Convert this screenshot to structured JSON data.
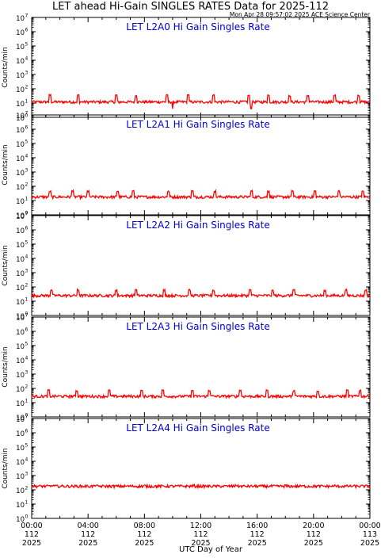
{
  "title": "LET ahead Hi-Gain SINGLES RATES Data for 2025-112",
  "timestamp": "Mon Apr 28 09:57:02 2025 ACE Science Center",
  "xlabel": "UTC Day of Year",
  "colors": {
    "trace": "#ff0000",
    "panel_title": "#0000cc",
    "axis": "#000000",
    "background": "#ffffff"
  },
  "chart_data": [
    {
      "type": "line",
      "title": "LET L2A0 Hi Gain Singles Rate",
      "ylabel": "Counts/min",
      "yscale": "log",
      "ylim": [
        1,
        10000000
      ],
      "xlim": [
        0,
        24
      ],
      "baseline": 12,
      "spike_times": [
        1.3,
        3.3,
        6.0,
        7.4,
        9.6,
        11.1,
        12.9,
        15.4,
        16.8,
        18.3,
        19.6,
        21.5,
        23.2
      ],
      "spike_value": 35,
      "dip_times": [
        10.0,
        15.6
      ],
      "dip_value": 4
    },
    {
      "type": "line",
      "title": "LET L2A1 Hi Gain Singles Rate",
      "ylabel": "Counts/min",
      "yscale": "log",
      "ylim": [
        1,
        10000000
      ],
      "xlim": [
        0,
        24
      ],
      "baseline": 18,
      "spike_times": [
        1.3,
        2.9,
        4.0,
        6.1,
        7.2,
        9.7,
        11.4,
        13.0,
        15.6,
        16.8,
        18.5,
        20.1,
        21.8,
        23.5
      ],
      "spike_value": 45,
      "dip_times": [],
      "dip_value": 8
    },
    {
      "type": "line",
      "title": "LET L2A2 Hi Gain Singles Rate",
      "ylabel": "Counts/min",
      "yscale": "log",
      "ylim": [
        1,
        10000000
      ],
      "xlim": [
        0,
        24
      ],
      "baseline": 25,
      "spike_times": [
        1.4,
        3.3,
        6.0,
        7.4,
        9.4,
        11.2,
        12.9,
        15.5,
        17.1,
        18.6,
        20.8,
        22.3,
        23.7
      ],
      "spike_value": 60,
      "dip_times": [],
      "dip_value": 12
    },
    {
      "type": "line",
      "title": "LET L2A3 Hi Gain Singles Rate",
      "ylabel": "Counts/min",
      "yscale": "log",
      "ylim": [
        1,
        10000000
      ],
      "xlim": [
        0,
        24
      ],
      "baseline": 28,
      "spike_times": [
        1.2,
        3.2,
        5.5,
        7.8,
        9.3,
        11.4,
        12.6,
        14.8,
        16.7,
        18.6,
        20.3,
        22.4,
        23.3
      ],
      "spike_value": 70,
      "dip_times": [],
      "dip_value": 15
    },
    {
      "type": "line",
      "title": "LET L2A4 Hi Gain Singles Rate",
      "ylabel": "Counts/min",
      "yscale": "log",
      "ylim": [
        1,
        10000000
      ],
      "xlim": [
        0,
        24
      ],
      "baseline": 180,
      "spike_times": [
        1.5,
        4.5,
        8.0,
        11.5,
        14.5,
        18.0,
        21.5
      ],
      "spike_value": 200,
      "dip_times": [],
      "dip_value": 170
    }
  ],
  "x_ticks": [
    {
      "time": "00:00",
      "day": "112",
      "year": "2025"
    },
    {
      "time": "04:00",
      "day": "112",
      "year": "2025"
    },
    {
      "time": "08:00",
      "day": "112",
      "year": "2025"
    },
    {
      "time": "12:00",
      "day": "112",
      "year": "2025"
    },
    {
      "time": "16:00",
      "day": "112",
      "year": "2025"
    },
    {
      "time": "20:00",
      "day": "112",
      "year": "2025"
    },
    {
      "time": "00:00",
      "day": "113",
      "year": "2025"
    }
  ],
  "y_tick_labels": [
    {
      "base": "10",
      "exp": "0"
    },
    {
      "base": "10",
      "exp": "1"
    },
    {
      "base": "10",
      "exp": "2"
    },
    {
      "base": "10",
      "exp": "3"
    },
    {
      "base": "10",
      "exp": "4"
    },
    {
      "base": "10",
      "exp": "5"
    },
    {
      "base": "10",
      "exp": "6"
    },
    {
      "base": "10",
      "exp": "7"
    }
  ]
}
